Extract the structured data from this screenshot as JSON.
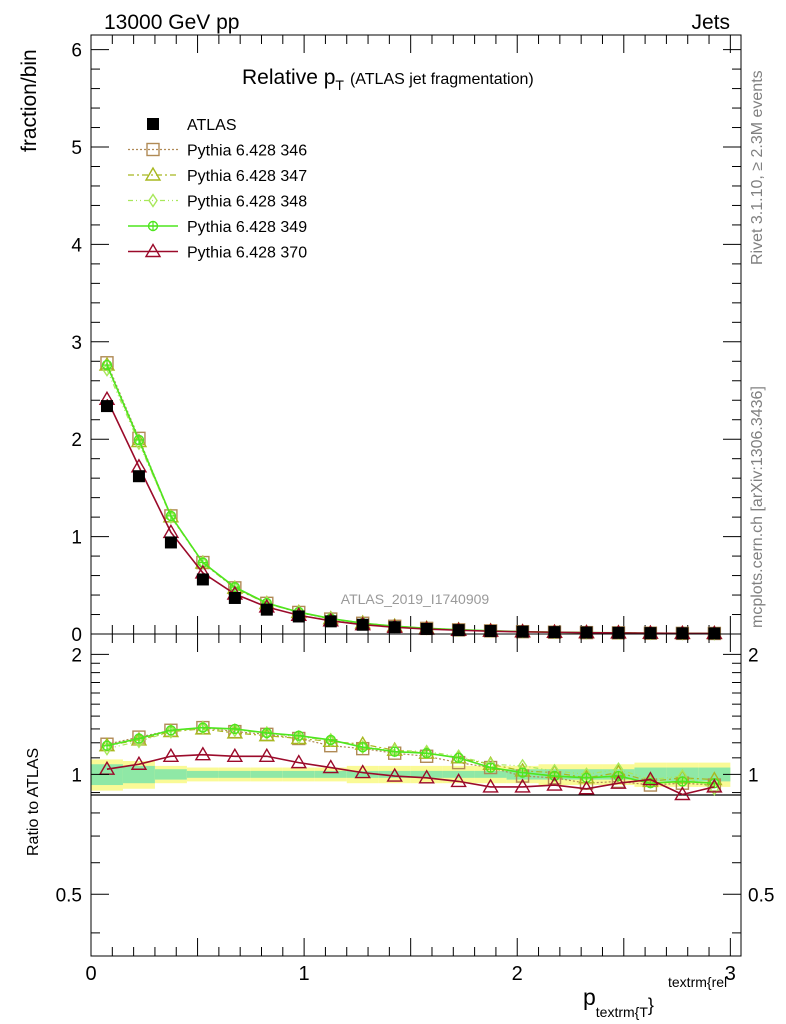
{
  "header": {
    "left": "13000 GeV pp",
    "right": "Jets"
  },
  "side_labels": {
    "rivet": "Rivet 3.1.10, ≥ 2.3M events",
    "mcplots": "mcplots.cern.ch [arXiv:1306.3436]"
  },
  "chart_data": {
    "type": "line",
    "title": "Relative p",
    "title_sub": "T",
    "title_suffix": "(ATLAS jet fragmentation)",
    "watermark": "ATLAS_2019_I1740909",
    "ylabel": "fraction/bin",
    "ratio_ylabel": "Ratio to ATLAS",
    "xlabel": "p",
    "xlabel_sub": "textrm{T",
    "xlabel_sup": "textrm{rel",
    "xlabel_brace": "}",
    "xlim": [
      0,
      3.05
    ],
    "ylim": [
      0,
      6.15
    ],
    "ratio_ylim": [
      0.35,
      2.25
    ],
    "x_ticks": [
      "0",
      "1",
      "2",
      "3"
    ],
    "y_ticks": [
      "0",
      "1",
      "2",
      "3",
      "4",
      "5",
      "6"
    ],
    "ratio_ticks": [
      "0.5",
      "1",
      "2"
    ],
    "legend_position": "top-left",
    "x": [
      0.075,
      0.225,
      0.375,
      0.525,
      0.675,
      0.825,
      0.975,
      1.125,
      1.275,
      1.425,
      1.575,
      1.725,
      1.875,
      2.025,
      2.175,
      2.325,
      2.475,
      2.625,
      2.775,
      2.925
    ],
    "data": {
      "name": "ATLAS",
      "values": [
        2.34,
        1.62,
        0.94,
        0.56,
        0.37,
        0.25,
        0.18,
        0.13,
        0.095,
        0.07,
        0.052,
        0.04,
        0.031,
        0.024,
        0.019,
        0.015,
        0.012,
        0.009,
        0.007,
        0.006
      ]
    },
    "series": [
      {
        "name": "Pythia 6.428 346",
        "color": "#b08a55",
        "marker": "square-open",
        "ratio": [
          1.19,
          1.24,
          1.29,
          1.31,
          1.28,
          1.26,
          1.23,
          1.18,
          1.16,
          1.13,
          1.11,
          1.07,
          1.04,
          0.99,
          0.98,
          0.95,
          0.96,
          0.94,
          0.95,
          0.94
        ]
      },
      {
        "name": "Pythia 6.428 347",
        "color": "#a8b820",
        "marker": "triangle-open",
        "ratio": [
          1.18,
          1.22,
          1.28,
          1.3,
          1.27,
          1.25,
          1.23,
          1.21,
          1.19,
          1.15,
          1.13,
          1.1,
          1.06,
          1.02,
          1.01,
          0.98,
          1.01,
          0.96,
          0.98,
          0.97
        ]
      },
      {
        "name": "Pythia 6.428 348",
        "color": "#a8e85a",
        "marker": "diamond-open",
        "ratio": [
          1.16,
          1.21,
          1.28,
          1.31,
          1.29,
          1.27,
          1.24,
          1.22,
          1.17,
          1.15,
          1.14,
          1.11,
          1.06,
          1.05,
          1.02,
          1.0,
          1.03,
          0.97,
          0.99,
          0.92
        ]
      },
      {
        "name": "Pythia 6.428 349",
        "color": "#4ee61e",
        "marker": "cross-circle",
        "ratio": [
          1.18,
          1.23,
          1.29,
          1.31,
          1.3,
          1.27,
          1.25,
          1.22,
          1.17,
          1.14,
          1.13,
          1.1,
          1.04,
          1.01,
          0.99,
          0.98,
          0.99,
          0.95,
          0.96,
          0.95
        ]
      },
      {
        "name": "Pythia 6.428 370",
        "color": "#9b0a2a",
        "marker": "triangle-open",
        "ratio": [
          1.03,
          1.06,
          1.11,
          1.12,
          1.11,
          1.11,
          1.07,
          1.04,
          1.01,
          0.99,
          0.98,
          0.96,
          0.93,
          0.93,
          0.94,
          0.92,
          0.95,
          0.97,
          0.89,
          0.93
        ]
      }
    ],
    "ratio_band": {
      "yellow_lo": [
        0.91,
        0.92,
        0.95,
        0.96,
        0.96,
        0.96,
        0.96,
        0.96,
        0.95,
        0.95,
        0.95,
        0.95,
        0.95,
        0.95,
        0.94,
        0.94,
        0.94,
        0.93,
        0.93,
        0.93
      ],
      "yellow_hi": [
        1.09,
        1.08,
        1.05,
        1.04,
        1.04,
        1.04,
        1.04,
        1.04,
        1.05,
        1.05,
        1.05,
        1.05,
        1.05,
        1.05,
        1.06,
        1.06,
        1.06,
        1.07,
        1.07,
        1.07
      ],
      "green_lo": [
        0.94,
        0.95,
        0.97,
        0.98,
        0.98,
        0.98,
        0.98,
        0.98,
        0.98,
        0.98,
        0.98,
        0.98,
        0.98,
        0.97,
        0.97,
        0.97,
        0.97,
        0.96,
        0.96,
        0.96
      ],
      "green_hi": [
        1.06,
        1.05,
        1.03,
        1.02,
        1.02,
        1.02,
        1.02,
        1.02,
        1.02,
        1.02,
        1.02,
        1.02,
        1.02,
        1.03,
        1.03,
        1.03,
        1.03,
        1.04,
        1.04,
        1.04
      ]
    }
  }
}
